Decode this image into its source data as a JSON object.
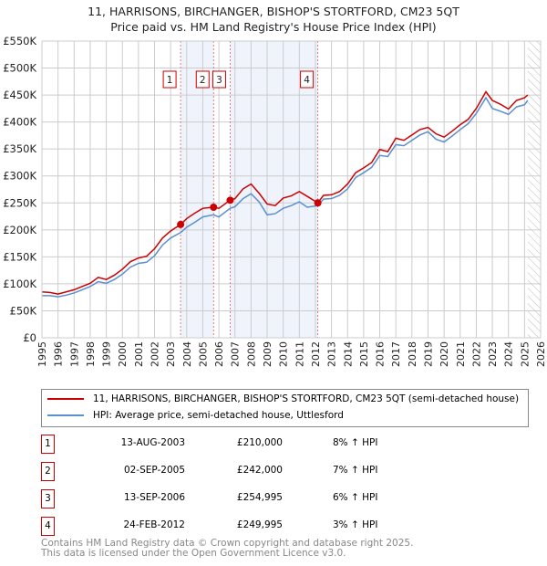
{
  "chart_data": {
    "type": "line",
    "title": "11, HARRISONS, BIRCHANGER, BISHOP'S STORTFORD, CM23 5QT",
    "subtitle": "Price paid vs. HM Land Registry's House Price Index (HPI)",
    "xlim": [
      1995,
      2026
    ],
    "ylim": [
      0,
      550000
    ],
    "x_ticks": [
      "1995",
      "1996",
      "1997",
      "1998",
      "1999",
      "2000",
      "2001",
      "2002",
      "2003",
      "2004",
      "2005",
      "2006",
      "2007",
      "2008",
      "2009",
      "2010",
      "2011",
      "2012",
      "2013",
      "2014",
      "2015",
      "2016",
      "2017",
      "2018",
      "2019",
      "2020",
      "2021",
      "2022",
      "2023",
      "2024",
      "2025",
      "2026"
    ],
    "y_ticks": [
      {
        "v": 0,
        "label": "£0"
      },
      {
        "v": 50000,
        "label": "£50K"
      },
      {
        "v": 100000,
        "label": "£100K"
      },
      {
        "v": 150000,
        "label": "£150K"
      },
      {
        "v": 200000,
        "label": "£200K"
      },
      {
        "v": 250000,
        "label": "£250K"
      },
      {
        "v": 300000,
        "label": "£300K"
      },
      {
        "v": 350000,
        "label": "£350K"
      },
      {
        "v": 400000,
        "label": "£400K"
      },
      {
        "v": 450000,
        "label": "£450K"
      },
      {
        "v": 500000,
        "label": "£500K"
      },
      {
        "v": 550000,
        "label": "£550K"
      }
    ],
    "grid": true,
    "series": [
      {
        "name": "11, HARRISONS, BIRCHANGER, BISHOP'S STORTFORD, CM23 5QT (semi-detached house)",
        "color": "#cc0000",
        "x": [
          1995,
          1995.5,
          1996,
          1996.5,
          1997,
          1997.5,
          1998,
          1998.5,
          1999,
          1999.5,
          2000,
          2000.5,
          2001,
          2001.5,
          2002,
          2002.5,
          2003,
          2003.62,
          2004,
          2004.5,
          2005,
          2005.67,
          2006,
          2006.7,
          2007,
          2007.5,
          2008,
          2008.5,
          2009,
          2009.5,
          2010,
          2010.5,
          2011,
          2011.5,
          2012.15,
          2012.5,
          2013,
          2013.5,
          2014,
          2014.5,
          2015,
          2015.5,
          2016,
          2016.5,
          2017,
          2017.5,
          2018,
          2018.5,
          2019,
          2019.5,
          2020,
          2020.5,
          2021,
          2021.5,
          2022,
          2022.6,
          2023,
          2023.5,
          2024,
          2024.5,
          2025,
          2025.2
        ],
        "y": [
          85000,
          84000,
          81000,
          85000,
          89000,
          95000,
          101000,
          112000,
          108000,
          116000,
          127000,
          141000,
          148000,
          151000,
          165000,
          185000,
          198000,
          210000,
          221000,
          231000,
          240000,
          242000,
          240000,
          255000,
          258000,
          276000,
          285000,
          268000,
          248000,
          245000,
          259000,
          263000,
          271000,
          262000,
          250000,
          264000,
          265000,
          271000,
          285000,
          306000,
          315000,
          325000,
          349000,
          345000,
          370000,
          366000,
          376000,
          386000,
          390000,
          378000,
          372000,
          383000,
          395000,
          405000,
          425000,
          456000,
          440000,
          433000,
          424000,
          440000,
          445000,
          450000
        ]
      },
      {
        "name": "HPI: Average price, semi-detached house, Uttlesford",
        "color": "#5b8fd0",
        "x": [
          1995,
          1995.5,
          1996,
          1996.5,
          1997,
          1997.5,
          1998,
          1998.5,
          1999,
          1999.5,
          2000,
          2000.5,
          2001,
          2001.5,
          2002,
          2002.5,
          2003,
          2003.62,
          2004,
          2004.5,
          2005,
          2005.67,
          2006,
          2006.7,
          2007,
          2007.5,
          2008,
          2008.5,
          2009,
          2009.5,
          2010,
          2010.5,
          2011,
          2011.5,
          2012.15,
          2012.5,
          2013,
          2013.5,
          2014,
          2014.5,
          2015,
          2015.5,
          2016,
          2016.5,
          2017,
          2017.5,
          2018,
          2018.5,
          2019,
          2019.5,
          2020,
          2020.5,
          2021,
          2021.5,
          2022,
          2022.6,
          2023,
          2023.5,
          2024,
          2024.5,
          2025,
          2025.2
        ],
        "y": [
          78000,
          78000,
          76000,
          79000,
          83000,
          89000,
          95000,
          104000,
          101000,
          108000,
          118000,
          131000,
          138000,
          140000,
          152000,
          172000,
          185000,
          195000,
          205000,
          214000,
          224000,
          228000,
          224000,
          240000,
          243000,
          258000,
          267000,
          252000,
          228000,
          230000,
          240000,
          245000,
          252000,
          242000,
          245000,
          257000,
          258000,
          264000,
          276000,
          297000,
          306000,
          316000,
          338000,
          336000,
          358000,
          356000,
          366000,
          376000,
          382000,
          368000,
          363000,
          374000,
          386000,
          397000,
          416000,
          445000,
          425000,
          420000,
          414000,
          428000,
          432000,
          440000
        ]
      }
    ],
    "sales": [
      {
        "id": "1",
        "x": 2003.62,
        "y": 210000
      },
      {
        "id": "2",
        "x": 2005.67,
        "y": 242000
      },
      {
        "id": "3",
        "x": 2006.7,
        "y": 254995
      },
      {
        "id": "4",
        "x": 2012.15,
        "y": 249995
      }
    ],
    "shaded_ranges": [
      [
        2003.62,
        2005.67
      ],
      [
        2006.7,
        2012.15
      ]
    ],
    "forecast_from": 2025.2,
    "legend_placement": "bottom"
  },
  "legend": {
    "red": "11, HARRISONS, BIRCHANGER, BISHOP'S STORTFORD, CM23 5QT (semi-detached house)",
    "blue": "HPI: Average price, semi-detached house, Uttlesford"
  },
  "transactions": [
    {
      "num": "1",
      "date": "13-AUG-2003",
      "price": "£210,000",
      "hpi": "8% ↑ HPI"
    },
    {
      "num": "2",
      "date": "02-SEP-2005",
      "price": "£242,000",
      "hpi": "7% ↑ HPI"
    },
    {
      "num": "3",
      "date": "13-SEP-2006",
      "price": "£254,995",
      "hpi": "6% ↑ HPI"
    },
    {
      "num": "4",
      "date": "24-FEB-2012",
      "price": "£249,995",
      "hpi": "3% ↑ HPI"
    }
  ],
  "footer": {
    "line1": "Contains HM Land Registry data © Crown copyright and database right 2025.",
    "line2": "This data is licensed under the Open Government Licence v3.0."
  }
}
